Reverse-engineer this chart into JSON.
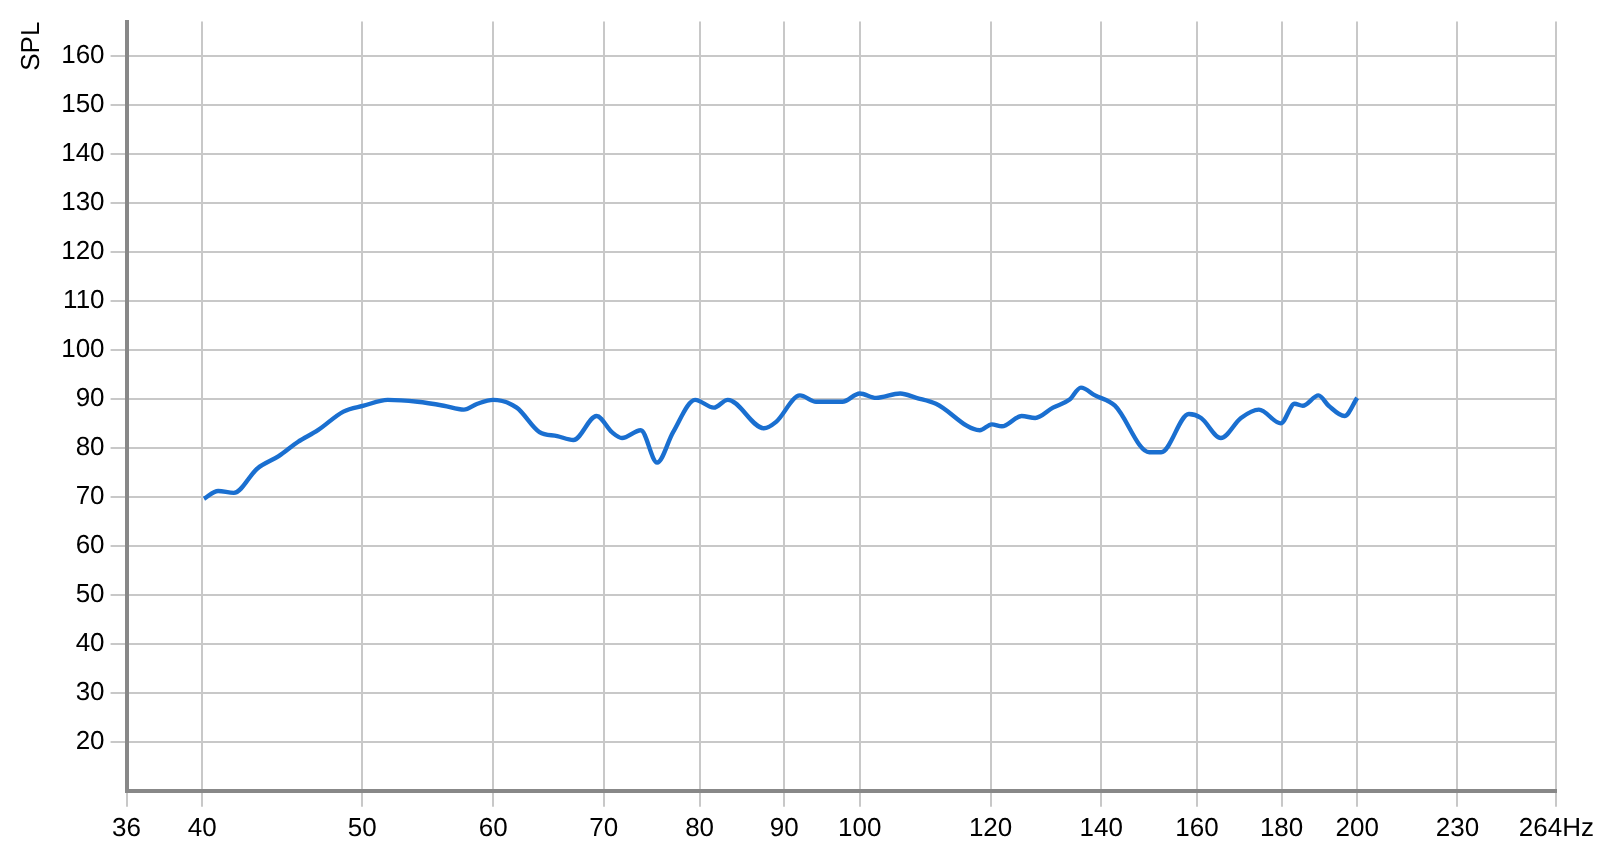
{
  "chart_data": {
    "type": "line",
    "ylabel": "SPL",
    "log": "x",
    "grid": true,
    "legend": false,
    "marker": "none",
    "line_style": "solid",
    "xlim": [
      36,
      264
    ],
    "xticks": [
      36,
      40,
      50,
      60,
      70,
      80,
      90,
      100,
      120,
      140,
      160,
      180,
      200,
      230,
      {
        "value": 264,
        "label": "264Hz"
      }
    ],
    "ylim": [
      10,
      167
    ],
    "yticks": [
      20,
      30,
      40,
      50,
      60,
      70,
      80,
      90,
      100,
      110,
      120,
      130,
      140,
      150,
      160
    ],
    "series": [
      {
        "color": "#1a6fd0",
        "x": [
          40.1,
          40.9,
          41.8,
          43.2,
          44.5,
          45.7,
          47.0,
          48.7,
          50.1,
          51.8,
          54.0,
          56.0,
          57.6,
          58.7,
          60.0,
          62.0,
          64.0,
          65.6,
          67.1,
          69.3,
          70.8,
          71.8,
          73.7,
          75.4,
          77.1,
          79.5,
          81.6,
          83.2,
          87.5,
          89.0,
          92.0,
          94.1,
          97.6,
          100.0,
          102.3,
          105.8,
          108.2,
          111.2,
          118.2,
          120.2,
          121.9,
          125.3,
          127.7,
          130.9,
          133.9,
          136.1,
          138.8,
          142.7,
          149.7,
          152.2,
          158.2,
          160.9,
          165.4,
          170.1,
          174.4,
          179.8,
          183.3,
          185.4,
          189.5,
          192.2,
          196.5,
          200.0
        ],
        "values": [
          69.6,
          71.2,
          70.8,
          75.8,
          78.3,
          81.2,
          83.6,
          87.4,
          88.6,
          89.8,
          89.4,
          88.6,
          87.8,
          89.0,
          89.8,
          88.2,
          83.2,
          82.4,
          81.6,
          86.5,
          83.2,
          82.0,
          83.6,
          77.0,
          83.2,
          89.8,
          88.2,
          89.8,
          84.0,
          85.3,
          90.7,
          89.4,
          89.4,
          91.1,
          90.2,
          91.1,
          90.2,
          89.0,
          83.6,
          84.8,
          84.4,
          86.5,
          86.1,
          88.2,
          89.8,
          92.3,
          90.7,
          88.6,
          79.1,
          79.1,
          86.9,
          86.1,
          82.0,
          86.1,
          87.8,
          85.0,
          89.0,
          88.6,
          90.7,
          88.6,
          86.5,
          90.2
        ]
      }
    ]
  }
}
